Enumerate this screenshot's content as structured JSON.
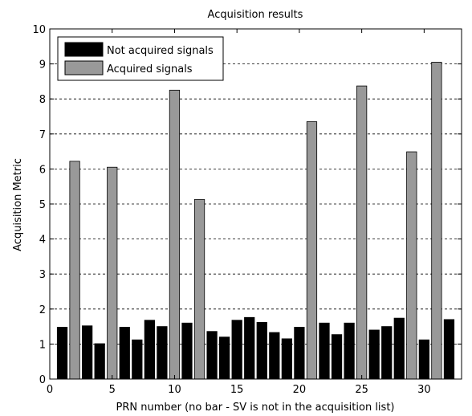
{
  "chart_data": {
    "type": "bar",
    "title": "Acquisition results",
    "xlabel": "PRN number (no bar - SV is not in the acquisition list)",
    "ylabel": "Acquisition Metric",
    "xlim": [
      0,
      33
    ],
    "ylim": [
      0,
      10
    ],
    "xticks": [
      0,
      5,
      10,
      15,
      20,
      25,
      30
    ],
    "yticks": [
      0,
      1,
      2,
      3,
      4,
      5,
      6,
      7,
      8,
      9,
      10
    ],
    "grid": "horizontal dashed",
    "legend_position": "top-left",
    "series": [
      {
        "name": "Not acquired signals",
        "color": "#000000",
        "points": [
          {
            "x": 1,
            "y": 1.48
          },
          {
            "x": 3,
            "y": 1.52
          },
          {
            "x": 4,
            "y": 1.01
          },
          {
            "x": 6,
            "y": 1.48
          },
          {
            "x": 7,
            "y": 1.12
          },
          {
            "x": 8,
            "y": 1.68
          },
          {
            "x": 9,
            "y": 1.5
          },
          {
            "x": 11,
            "y": 1.6
          },
          {
            "x": 13,
            "y": 1.36
          },
          {
            "x": 14,
            "y": 1.2
          },
          {
            "x": 15,
            "y": 1.68
          },
          {
            "x": 16,
            "y": 1.76
          },
          {
            "x": 17,
            "y": 1.62
          },
          {
            "x": 18,
            "y": 1.33
          },
          {
            "x": 19,
            "y": 1.15
          },
          {
            "x": 20,
            "y": 1.48
          },
          {
            "x": 22,
            "y": 1.6
          },
          {
            "x": 23,
            "y": 1.27
          },
          {
            "x": 24,
            "y": 1.6
          },
          {
            "x": 26,
            "y": 1.4
          },
          {
            "x": 27,
            "y": 1.5
          },
          {
            "x": 28,
            "y": 1.74
          },
          {
            "x": 30,
            "y": 1.12
          },
          {
            "x": 32,
            "y": 1.7
          }
        ]
      },
      {
        "name": "Acquired signals",
        "color": "#999999",
        "points": [
          {
            "x": 2,
            "y": 6.22
          },
          {
            "x": 5,
            "y": 6.05
          },
          {
            "x": 10,
            "y": 8.25
          },
          {
            "x": 12,
            "y": 5.13
          },
          {
            "x": 21,
            "y": 7.35
          },
          {
            "x": 25,
            "y": 8.37
          },
          {
            "x": 29,
            "y": 6.49
          },
          {
            "x": 31,
            "y": 9.05
          }
        ]
      }
    ]
  }
}
